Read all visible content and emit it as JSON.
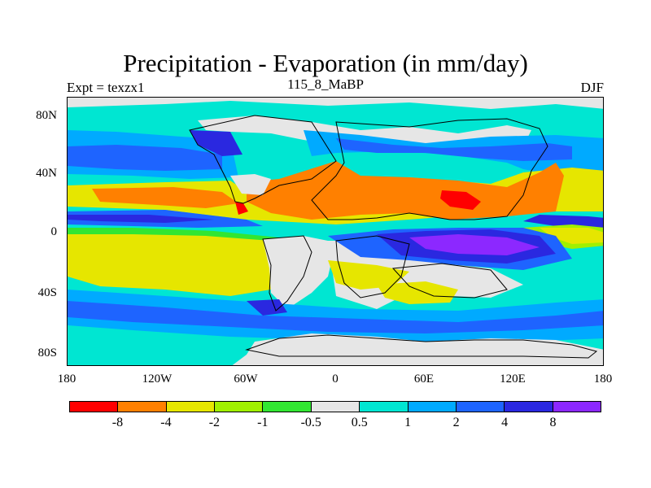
{
  "title": "Precipitation - Evaporation (in mm/day)",
  "subtitle_left": "Expt = texzx1",
  "subtitle_center": "115_8_MaBP",
  "subtitle_right": "DJF",
  "y_axis": {
    "labels": [
      "80N",
      "40N",
      "0",
      "40S",
      "80S"
    ]
  },
  "x_axis": {
    "labels": [
      "180",
      "120W",
      "60W",
      "0",
      "60E",
      "120E",
      "180"
    ]
  },
  "colorbar": {
    "colors": [
      "#ff0000",
      "#ff8000",
      "#e6e600",
      "#a0f000",
      "#32e632",
      "#e6e6e6",
      "#00e6d2",
      "#00aaff",
      "#1e64ff",
      "#2a28e0",
      "#8c28ff"
    ],
    "labels": [
      "-8",
      "-4",
      "-2",
      "-1",
      "-0.5",
      "0.5",
      "1",
      "2",
      "4",
      "8"
    ]
  },
  "map_colors": {
    "strong_neg": "#ff0000",
    "neg4": "#ff8000",
    "neg2": "#e6e600",
    "neg1": "#a0f000",
    "neg05": "#32e632",
    "neutral": "#e6e6e6",
    "pos05": "#00e6d2",
    "pos1": "#00aaff",
    "pos2": "#1e64ff",
    "pos4": "#2a28e0",
    "pos8": "#8c28ff"
  }
}
